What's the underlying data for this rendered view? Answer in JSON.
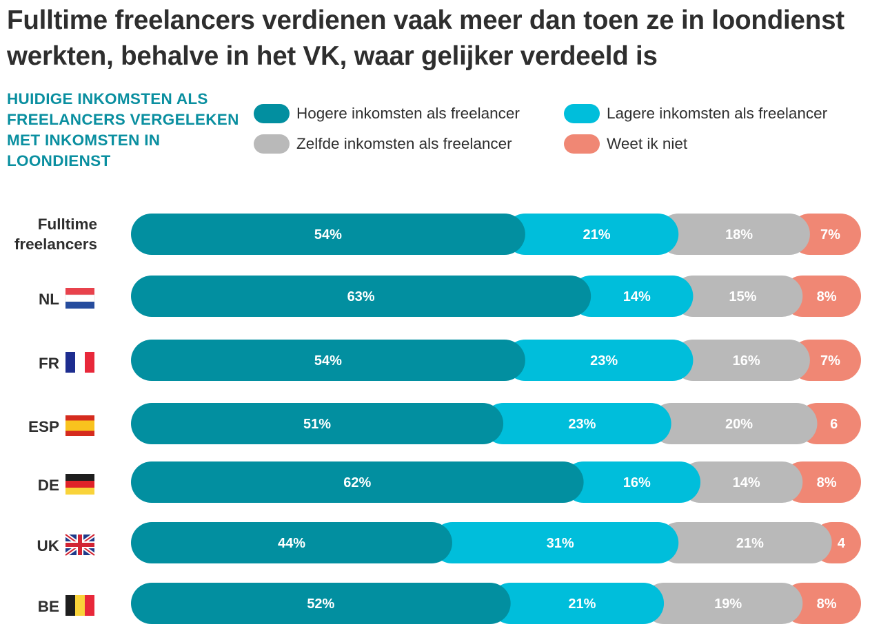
{
  "title": "Fulltime freelancers verdienen vaak meer dan toen ze in loondienst werkten, behalve in het VK, waar gelijker verdeeld is",
  "subtitle": "HUIDIGE INKOMSTEN ALS FREELANCERS VERGELEKEN MET INKOMSTEN IN LOONDIENST",
  "legend": [
    {
      "label": "Hogere inkomsten als freelancer",
      "color": "#028fa0"
    },
    {
      "label": "Lagere inkomsten als freelancer",
      "color": "#00bedb"
    },
    {
      "label": "Zelfde inkomsten als freelancer",
      "color": "#b9b9b9"
    },
    {
      "label": "Weet ik niet",
      "color": "#f08774"
    }
  ],
  "chart_data": {
    "type": "bar",
    "orientation": "horizontal",
    "stacked": true,
    "categories": [
      "Fulltime freelancers",
      "NL",
      "FR",
      "ESP",
      "DE",
      "UK",
      "BE"
    ],
    "category_flags": [
      null,
      "nl-flag-icon",
      "fr-flag-icon",
      "es-flag-icon",
      "de-flag-icon",
      "uk-flag-icon",
      "be-flag-icon"
    ],
    "series": [
      {
        "name": "Hogere inkomsten als freelancer",
        "color": "#028fa0",
        "values": [
          54,
          63,
          54,
          51,
          62,
          44,
          52
        ],
        "labels": [
          "54%",
          "63%",
          "54%",
          "51%",
          "62%",
          "44%",
          "52%"
        ]
      },
      {
        "name": "Lagere inkomsten als freelancer",
        "color": "#00bedb",
        "values": [
          21,
          14,
          23,
          23,
          16,
          31,
          21
        ],
        "labels": [
          "21%",
          "14%",
          "23%",
          "23%",
          "16%",
          "31%",
          "21%"
        ]
      },
      {
        "name": "Zelfde inkomsten als freelancer",
        "color": "#b9b9b9",
        "values": [
          18,
          15,
          16,
          20,
          14,
          21,
          19
        ],
        "labels": [
          "18%",
          "15%",
          "16%",
          "20%",
          "14%",
          "21%",
          "19%"
        ]
      },
      {
        "name": "Weet ik niet",
        "color": "#f08774",
        "values": [
          7,
          8,
          7,
          6,
          8,
          4,
          8
        ],
        "labels": [
          "7%",
          "8%",
          "7%",
          "6",
          "8%",
          "4",
          "8%"
        ]
      }
    ],
    "xlim": [
      0,
      100
    ],
    "unit": "%",
    "grid": false,
    "legend_position": "top"
  }
}
